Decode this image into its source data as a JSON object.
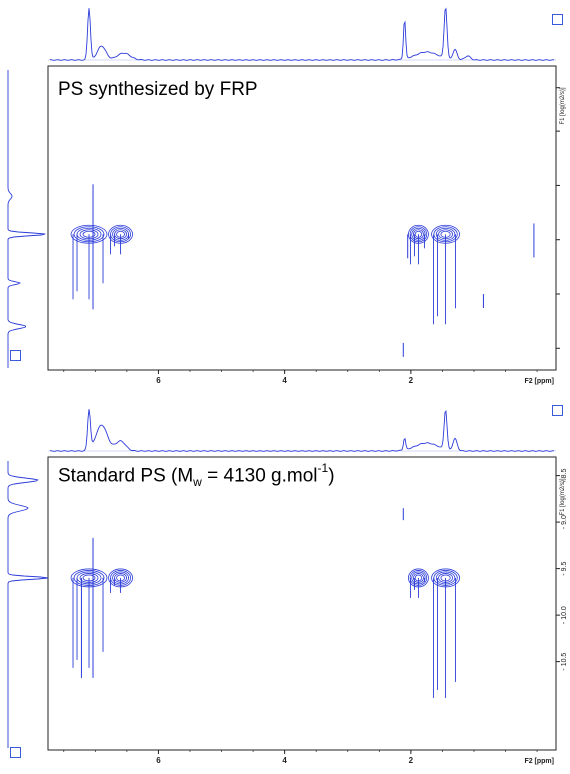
{
  "colors": {
    "trace": "#2b3bd9",
    "axis": "#222222",
    "box": "#3a5bd9"
  },
  "chart_data": [
    {
      "type": "contour",
      "title": "PS synthesized by FRP",
      "xlabel": "F2 [ppm]",
      "ylabel": "F1 [log(m2/s)]",
      "x_ticks": [
        "6",
        "4",
        "2"
      ],
      "y_ticks": [],
      "xlim": [
        7.75,
        -0.3
      ],
      "ylim": [
        -11.2,
        -8.4
      ],
      "peaks": [
        {
          "x": 7.1,
          "y": -9.95
        },
        {
          "x": 6.6,
          "y": -9.95
        },
        {
          "x": 1.88,
          "y": -9.95
        },
        {
          "x": 1.45,
          "y": -9.95
        }
      ]
    },
    {
      "type": "contour",
      "title_prefix": "Standard PS (M",
      "title_sub": "w",
      "title_mid": " = 4130 g.mol",
      "title_sup": "-1",
      "title_suffix": ")",
      "xlabel": "F2 [ppm]",
      "ylabel": "F1 [log(m2/s)]",
      "x_ticks": [
        "6",
        "4",
        "2"
      ],
      "y_ticks": [
        "10.5",
        "10.0",
        "9.5",
        "9.0",
        "8.5"
      ],
      "xlim": [
        7.75,
        -0.3
      ],
      "ylim": [
        -11.45,
        -8.3
      ],
      "peaks": [
        {
          "x": 7.1,
          "y": -9.6
        },
        {
          "x": 6.6,
          "y": -9.6
        },
        {
          "x": 1.88,
          "y": -9.6
        },
        {
          "x": 1.45,
          "y": -9.6
        }
      ]
    }
  ]
}
